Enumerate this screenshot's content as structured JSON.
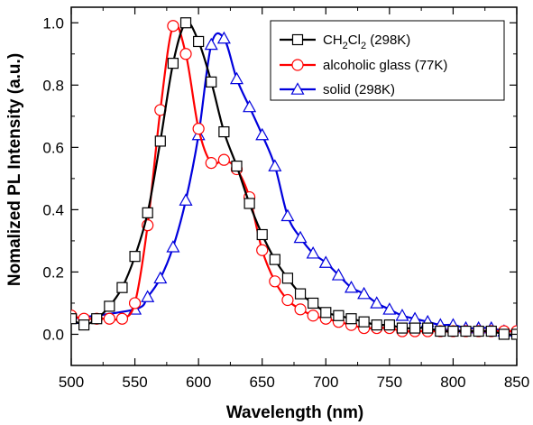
{
  "chart_data": {
    "type": "line",
    "xlabel": "Wavelength (nm)",
    "ylabel": "Nomalized PL Intensity (a.u.)",
    "xlim": [
      500,
      850
    ],
    "ylim": [
      -0.1,
      1.05
    ],
    "x_ticks": [
      500,
      550,
      600,
      650,
      700,
      750,
      800,
      850
    ],
    "y_ticks": [
      0.0,
      0.2,
      0.4,
      0.6,
      0.8,
      1.0
    ],
    "x_tick_labels": [
      "500",
      "550",
      "600",
      "650",
      "700",
      "750",
      "800",
      "850"
    ],
    "y_tick_labels": [
      "0.0",
      "0.2",
      "0.4",
      "0.6",
      "0.8",
      "1.0"
    ],
    "grid": false,
    "legend_position": "top-right",
    "series": [
      {
        "name": "CH2Cl2 (298K)",
        "legend_main": "CH",
        "legend_sub": "2",
        "legend_main2": "Cl",
        "legend_sub2": "2",
        "legend_rest": " (298K)",
        "color": "#000000",
        "marker": "square",
        "x": [
          500,
          510,
          520,
          530,
          540,
          550,
          560,
          570,
          580,
          590,
          600,
          610,
          620,
          630,
          640,
          650,
          660,
          670,
          680,
          690,
          700,
          710,
          720,
          730,
          740,
          750,
          760,
          770,
          780,
          790,
          800,
          810,
          820,
          830,
          840,
          850
        ],
        "y": [
          0.05,
          0.03,
          0.05,
          0.09,
          0.15,
          0.25,
          0.39,
          0.62,
          0.87,
          1.0,
          0.94,
          0.81,
          0.65,
          0.54,
          0.42,
          0.32,
          0.24,
          0.18,
          0.13,
          0.1,
          0.07,
          0.06,
          0.05,
          0.04,
          0.03,
          0.03,
          0.02,
          0.02,
          0.02,
          0.01,
          0.01,
          0.01,
          0.01,
          0.01,
          0.0,
          0.0
        ]
      },
      {
        "name": "alcoholic glass (77K)",
        "color": "#ff0000",
        "marker": "circle",
        "x": [
          500,
          510,
          520,
          530,
          540,
          550,
          560,
          570,
          580,
          590,
          600,
          610,
          620,
          630,
          640,
          650,
          660,
          670,
          680,
          690,
          700,
          710,
          720,
          730,
          740,
          750,
          760,
          770,
          780,
          790,
          800,
          810,
          820,
          830,
          840,
          850
        ],
        "y": [
          0.06,
          0.05,
          0.05,
          0.05,
          0.05,
          0.1,
          0.35,
          0.72,
          0.99,
          0.9,
          0.66,
          0.55,
          0.56,
          0.53,
          0.44,
          0.27,
          0.17,
          0.11,
          0.08,
          0.06,
          0.05,
          0.04,
          0.03,
          0.02,
          0.02,
          0.02,
          0.01,
          0.01,
          0.01,
          0.01,
          0.01,
          0.01,
          0.01,
          0.01,
          0.01,
          0.01
        ]
      },
      {
        "name": "solid (298K)",
        "color": "#0000dd",
        "marker": "triangle",
        "x": [
          500,
          550,
          560,
          570,
          580,
          590,
          600,
          610,
          620,
          630,
          640,
          650,
          660,
          670,
          680,
          690,
          700,
          710,
          720,
          730,
          740,
          750,
          760,
          770,
          780,
          790,
          800,
          810,
          820,
          830,
          840,
          850
        ],
        "y": [
          0.05,
          0.08,
          0.12,
          0.18,
          0.28,
          0.43,
          0.64,
          0.93,
          0.95,
          0.82,
          0.73,
          0.64,
          0.54,
          0.38,
          0.31,
          0.26,
          0.23,
          0.19,
          0.15,
          0.13,
          0.1,
          0.08,
          0.06,
          0.05,
          0.04,
          0.03,
          0.03,
          0.02,
          0.02,
          0.02,
          0.01,
          0.01
        ]
      }
    ]
  }
}
